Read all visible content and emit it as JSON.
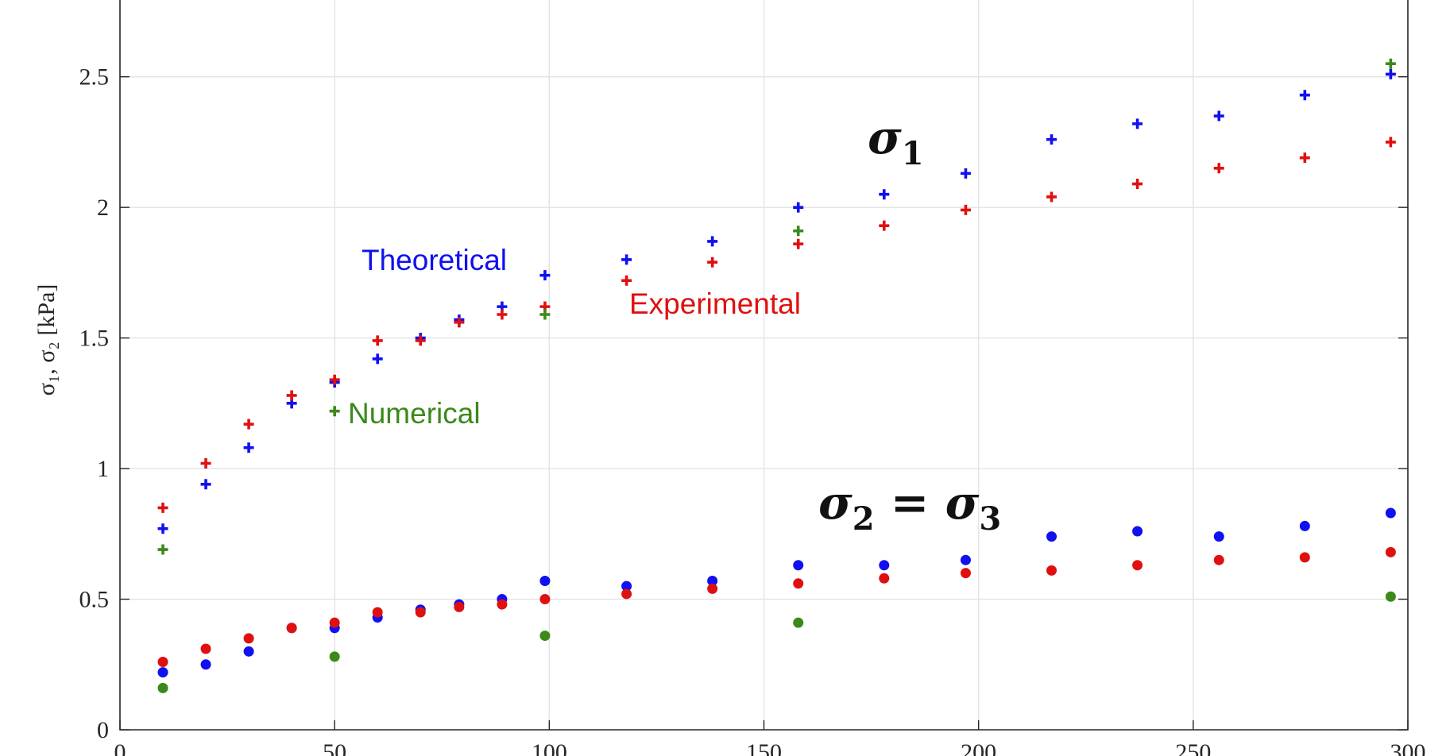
{
  "chart_data": {
    "type": "scatter",
    "title": "",
    "xlabel": "",
    "ylabel": "σ₁, σ₂ [kPa]",
    "xlim": [
      0,
      300
    ],
    "ylim": [
      0,
      2.8
    ],
    "grid": true,
    "x_ticks": [
      0,
      50,
      100,
      150,
      200,
      250,
      300
    ],
    "x_tick_labels": [
      "0",
      "50",
      "100",
      "150",
      "200",
      "250",
      "300"
    ],
    "y_ticks": [
      0,
      0.5,
      1,
      1.5,
      2,
      2.5
    ],
    "y_tick_labels": [
      "0",
      "0.5",
      "1",
      "1.5",
      "2",
      "2.5"
    ],
    "series": [
      {
        "name": "Theoretical",
        "color": "#1010f0",
        "marker": "plus",
        "values": [
          [
            10,
            0.77
          ],
          [
            20,
            0.94
          ],
          [
            30,
            1.08
          ],
          [
            40,
            1.25
          ],
          [
            50,
            1.33
          ],
          [
            60,
            1.42
          ],
          [
            70,
            1.5
          ],
          [
            79,
            1.57
          ],
          [
            89,
            1.62
          ],
          [
            99,
            1.74
          ],
          [
            118,
            1.8
          ],
          [
            138,
            1.87
          ],
          [
            158,
            2.0
          ],
          [
            178,
            2.05
          ],
          [
            197,
            2.13
          ],
          [
            217,
            2.26
          ],
          [
            237,
            2.32
          ],
          [
            256,
            2.35
          ],
          [
            276,
            2.43
          ],
          [
            296,
            2.51
          ]
        ]
      },
      {
        "name": "Experimental",
        "color": "#e01010",
        "marker": "plus",
        "values": [
          [
            10,
            0.85
          ],
          [
            20,
            1.02
          ],
          [
            30,
            1.17
          ],
          [
            40,
            1.28
          ],
          [
            50,
            1.34
          ],
          [
            60,
            1.49
          ],
          [
            70,
            1.49
          ],
          [
            79,
            1.56
          ],
          [
            89,
            1.59
          ],
          [
            99,
            1.62
          ],
          [
            118,
            1.72
          ],
          [
            138,
            1.79
          ],
          [
            158,
            1.86
          ],
          [
            178,
            1.93
          ],
          [
            197,
            1.99
          ],
          [
            217,
            2.04
          ],
          [
            237,
            2.09
          ],
          [
            256,
            2.15
          ],
          [
            276,
            2.19
          ],
          [
            296,
            2.25
          ]
        ]
      },
      {
        "name": "Numerical",
        "color": "#3a8a1a",
        "marker": "plus",
        "values": [
          [
            10,
            0.69
          ],
          [
            50,
            1.22
          ],
          [
            99,
            1.59
          ],
          [
            158,
            1.91
          ],
          [
            296,
            2.55
          ]
        ]
      },
      {
        "name": "",
        "color": "#1010f0",
        "marker": "dot",
        "values": [
          [
            10,
            0.22
          ],
          [
            20,
            0.25
          ],
          [
            30,
            0.3
          ],
          [
            40,
            0.39
          ],
          [
            50,
            0.39
          ],
          [
            60,
            0.43
          ],
          [
            70,
            0.46
          ],
          [
            79,
            0.48
          ],
          [
            89,
            0.5
          ],
          [
            99,
            0.57
          ],
          [
            118,
            0.55
          ],
          [
            138,
            0.57
          ],
          [
            158,
            0.63
          ],
          [
            178,
            0.63
          ],
          [
            197,
            0.65
          ],
          [
            217,
            0.74
          ],
          [
            237,
            0.76
          ],
          [
            256,
            0.74
          ],
          [
            276,
            0.78
          ],
          [
            296,
            0.83
          ]
        ]
      },
      {
        "name": "",
        "color": "#e01010",
        "marker": "dot",
        "values": [
          [
            10,
            0.26
          ],
          [
            20,
            0.31
          ],
          [
            30,
            0.35
          ],
          [
            40,
            0.39
          ],
          [
            50,
            0.41
          ],
          [
            60,
            0.45
          ],
          [
            70,
            0.45
          ],
          [
            79,
            0.47
          ],
          [
            89,
            0.48
          ],
          [
            99,
            0.5
          ],
          [
            118,
            0.52
          ],
          [
            138,
            0.54
          ],
          [
            158,
            0.56
          ],
          [
            178,
            0.58
          ],
          [
            197,
            0.6
          ],
          [
            217,
            0.61
          ],
          [
            237,
            0.63
          ],
          [
            256,
            0.65
          ],
          [
            276,
            0.66
          ],
          [
            296,
            0.68
          ]
        ]
      },
      {
        "name": "",
        "color": "#3a8a1a",
        "marker": "dot",
        "values": [
          [
            10,
            0.16
          ],
          [
            50,
            0.28
          ],
          [
            99,
            0.36
          ],
          [
            158,
            0.41
          ],
          [
            296,
            0.51
          ]
        ]
      }
    ],
    "annotations": {
      "theoretical_label": "Theoretical",
      "experimental_label": "Experimental",
      "numerical_label": "Numerical",
      "sigma1_main": "σ",
      "sigma1_sub": "1",
      "sigma23_a": "σ",
      "sigma23_a_sub": "2",
      "sigma23_eq": " = ",
      "sigma23_b": "σ",
      "sigma23_b_sub": "3"
    }
  }
}
